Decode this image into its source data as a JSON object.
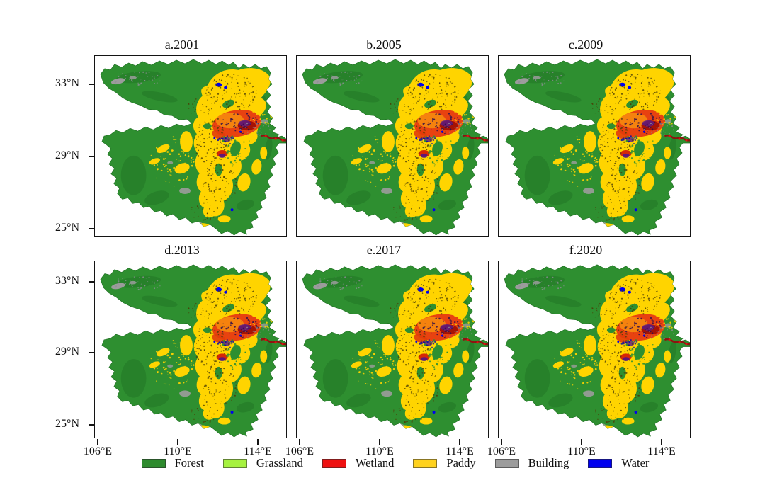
{
  "panels": [
    {
      "title": "a.2001"
    },
    {
      "title": "b.2005"
    },
    {
      "title": "c.2009"
    },
    {
      "title": "d.2013"
    },
    {
      "title": "e.2017"
    },
    {
      "title": "f.2020"
    }
  ],
  "axis": {
    "lat_ticks": [
      "33°N",
      "29°N",
      "25°N"
    ],
    "lon_ticks": [
      "106°E",
      "110°E",
      "114°E"
    ]
  },
  "legend": [
    {
      "label": "Forest",
      "color": "#2e8b2e"
    },
    {
      "label": "Grassland",
      "color": "#a6f23f"
    },
    {
      "label": "Wetland",
      "color": "#ee1111"
    },
    {
      "label": "Paddy",
      "color": "#ffd21e"
    },
    {
      "label": "Building",
      "color": "#9c9c9c"
    },
    {
      "label": "Water",
      "color": "#0000ee"
    }
  ],
  "palette": {
    "forest": "#2e8f30",
    "grassland": "#a6f23f",
    "wetland": "#ee1111",
    "paddy": "#ffd400",
    "building": "#9c9c9c",
    "water": "#0000ee"
  }
}
